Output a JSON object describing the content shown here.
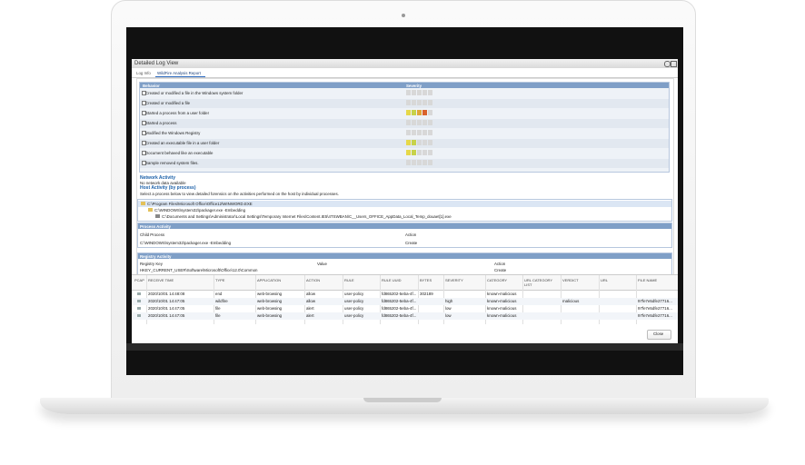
{
  "dialog": {
    "title": "Detailed Log View",
    "tabs": [
      "Log Info",
      "WildFire Analysis Report"
    ],
    "close_button": "Close"
  },
  "behavior_table": {
    "headers": [
      "Behavior",
      "Severity"
    ],
    "rows": [
      {
        "behavior": "Created or modified a file in the Windows system folder",
        "severity": 0
      },
      {
        "behavior": "Created or modified a file",
        "severity": 0
      },
      {
        "behavior": "Started a process from a user folder",
        "severity": 4
      },
      {
        "behavior": "Started a process",
        "severity": 0
      },
      {
        "behavior": "Modified the Windows Registry",
        "severity": 0
      },
      {
        "behavior": "Created an executable file in a user folder",
        "severity": 2
      },
      {
        "behavior": "Document behaved like an executable",
        "severity": 2
      },
      {
        "behavior": "Sample removed system files.",
        "severity": 0
      }
    ]
  },
  "network_activity": {
    "title": "Network Activity",
    "text": "No network data available"
  },
  "host_activity": {
    "title": "Host Activity (by process)",
    "text": "Select a process below to view detailed forensics on the activities performed on the host by individual processes.",
    "processes": [
      "C:\\Program Files\\Microsoft Office\\Office12\\WINWORD.EXE",
      "C:\\WINDOWS\\system32\\packager.exe -Embedding",
      "C:\\Documents and Settings\\Administrator\\Local Settings\\Temporary Internet Files\\Content.IE5\\4TSWBAN\\C__Users_OFFICE_AppData_Local_Temp_douaet[1].exe"
    ]
  },
  "process_activity": {
    "title": "Process Activity",
    "headers": [
      "Child Process",
      "Action"
    ],
    "rows": [
      [
        "C:\\WINDOWS\\system32\\packager.exe -Embedding",
        "Create"
      ]
    ]
  },
  "registry_activity": {
    "title": "Registry Activity",
    "headers": [
      "Registry Key",
      "Value",
      "Action"
    ],
    "rows": [
      [
        "HKEY_CURRENT_USER\\Software\\Microsoft\\Office\\12.0\\Common",
        null,
        "Create"
      ]
    ]
  },
  "log_table": {
    "headers": [
      "PCAP",
      "RECEIVE TIME",
      "TYPE",
      "APPLICATION",
      "ACTION",
      "RULE",
      "RULE UUID",
      "BYTES",
      "SEVERITY",
      "CATEGORY",
      "URL CATEGORY LIST",
      "VERDICT",
      "URL",
      "FILE NAME"
    ],
    "rows": [
      [
        null,
        "2020/10/01 14:48:08",
        "end",
        "web-browsing",
        "allow",
        "user-policy",
        "fd865202-5eba-4f...",
        "302189",
        null,
        "known-malicious",
        null,
        null,
        null,
        null
      ],
      [
        null,
        "2020/10/01 14:47:05",
        "wildfire",
        "web-browsing",
        "allow",
        "user-policy",
        "fd865202-5eba-4f...",
        null,
        "high",
        "known-malicious",
        null,
        "malicious",
        null,
        "97fe7e5dfe27716..."
      ],
      [
        null,
        "2020/10/01 14:47:05",
        "file",
        "web-browsing",
        "alert",
        "user-policy",
        "fd865202-5eba-4f...",
        null,
        "low",
        "known-malicious",
        null,
        null,
        null,
        "97fe7e5dfe27716..."
      ],
      [
        null,
        "2020/10/01 14:47:05",
        "file",
        "web-browsing",
        "alert",
        "user-policy",
        "fd865202-5eba-4f...",
        null,
        "low",
        "known-malicious",
        null,
        null,
        null,
        "97fe7e5dfe27716..."
      ]
    ]
  }
}
